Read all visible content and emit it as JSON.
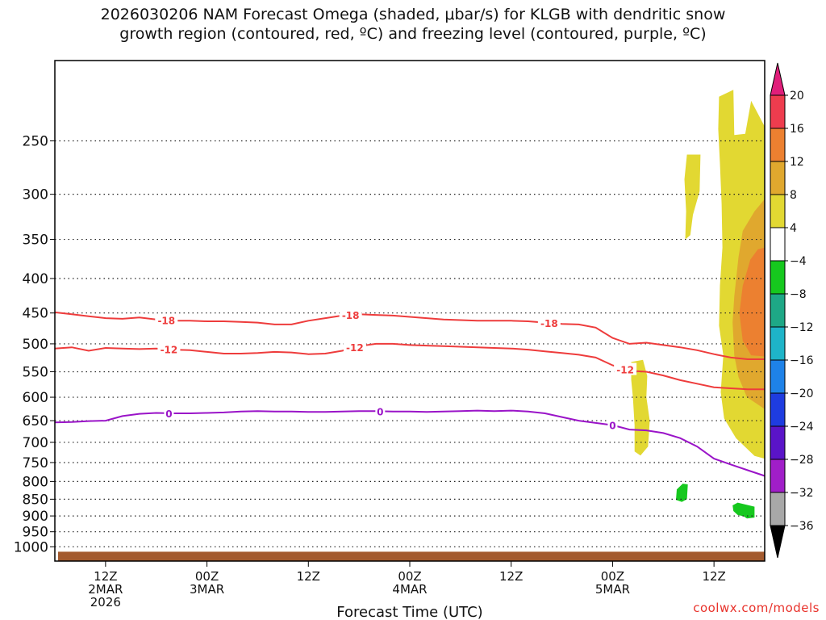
{
  "title": "2026030206 NAM Forecast Omega (shaded, μbar/s) for KLGB with dendritic snow\ngrowth region (contoured, red, ºC) and freezing level (contoured, purple, ºC)",
  "credit": "coolwx.com/models",
  "chart_data": {
    "type": "time-height contour",
    "title": "2026030206 NAM Forecast Omega (shaded, μbar/s) for KLGB with dendritic snow growth region (contoured, red, ºC) and freezing level (contoured, purple, ºC)",
    "xlabel": "Forecast Time (UTC)",
    "ylabel": "",
    "x_range_hours": [
      6,
      90
    ],
    "y_range_mb": [
      1050,
      190
    ],
    "y_ticks": [
      250,
      300,
      350,
      400,
      450,
      500,
      550,
      600,
      650,
      700,
      750,
      800,
      850,
      900,
      950,
      1000
    ],
    "x_ticks": [
      {
        "hour": 12,
        "lines": [
          "12Z",
          "2MAR",
          "2026"
        ]
      },
      {
        "hour": 24,
        "lines": [
          "00Z",
          "3MAR"
        ]
      },
      {
        "hour": 36,
        "lines": [
          "12Z"
        ]
      },
      {
        "hour": 48,
        "lines": [
          "00Z",
          "4MAR"
        ]
      },
      {
        "hour": 60,
        "lines": [
          "12Z"
        ]
      },
      {
        "hour": 72,
        "lines": [
          "00Z",
          "5MAR"
        ]
      },
      {
        "hour": 84,
        "lines": [
          "12Z"
        ]
      }
    ],
    "grid": true,
    "colorbar": {
      "label_values": [
        20,
        16,
        12,
        8,
        4,
        -4,
        -8,
        -12,
        -16,
        -20,
        -24,
        -28,
        -32,
        -36
      ],
      "levels": [
        {
          "range": [
            16,
            20
          ],
          "color": "#ee3c4e"
        },
        {
          "range": [
            12,
            16
          ],
          "color": "#ec8030"
        },
        {
          "range": [
            8,
            12
          ],
          "color": "#e0a82e"
        },
        {
          "range": [
            4,
            8
          ],
          "color": "#e2d832"
        },
        {
          "range": [
            -4,
            4
          ],
          "color": "#ffffff"
        },
        {
          "range": [
            -8,
            -4
          ],
          "color": "#16c81e"
        },
        {
          "range": [
            -12,
            -8
          ],
          "color": "#1ea886"
        },
        {
          "range": [
            -16,
            -12
          ],
          "color": "#1eb4c8"
        },
        {
          "range": [
            -20,
            -16
          ],
          "color": "#1e82e8"
        },
        {
          "range": [
            -24,
            -20
          ],
          "color": "#1e3ce0"
        },
        {
          "range": [
            -28,
            -24
          ],
          "color": "#5a14c8"
        },
        {
          "range": [
            -32,
            -28
          ],
          "color": "#a01ec8"
        },
        {
          "range": [
            -36,
            -32
          ],
          "color": "#a8a8a8"
        }
      ],
      "top_extension_color": "#e01e7a",
      "bottom_extension_color": "#000000"
    },
    "series": [
      {
        "name": "-18 ºC (dendritic growth top)",
        "color": "#ee3c3c",
        "label": "-18",
        "label_hours": [
          19.2,
          41,
          64.5
        ],
        "hours": [
          6,
          8,
          10,
          12,
          14,
          16,
          18,
          20,
          22,
          24,
          26,
          28,
          30,
          32,
          34,
          36,
          38,
          40,
          42,
          44,
          46,
          48,
          50,
          52,
          54,
          56,
          58,
          60,
          62,
          64,
          66,
          68,
          70,
          72,
          74,
          76,
          78,
          80,
          82,
          84,
          86,
          88,
          90
        ],
        "values_mb": [
          449,
          452,
          455,
          458,
          459,
          457,
          460,
          462,
          462,
          463,
          463,
          464,
          465,
          468,
          468,
          462,
          458,
          454,
          452,
          453,
          454,
          456,
          458,
          460,
          461,
          462,
          462,
          462,
          463,
          465,
          467,
          468,
          473,
          490,
          500,
          498,
          502,
          506,
          511,
          518,
          524,
          527,
          527
        ]
      },
      {
        "name": "-12 ºC (dendritic growth bottom)",
        "color": "#ee3c3c",
        "label": "-12",
        "label_hours": [
          19.5,
          41.5,
          73.5
        ],
        "hours": [
          6,
          8,
          10,
          12,
          14,
          16,
          18,
          20,
          22,
          24,
          26,
          28,
          30,
          32,
          34,
          36,
          38,
          40,
          42,
          44,
          46,
          48,
          50,
          52,
          54,
          56,
          58,
          60,
          62,
          64,
          66,
          68,
          70,
          72,
          74,
          76,
          78,
          80,
          82,
          84,
          86,
          88,
          90
        ],
        "values_mb": [
          508,
          506,
          512,
          507,
          508,
          509,
          508,
          510,
          511,
          514,
          517,
          517,
          516,
          514,
          515,
          518,
          517,
          512,
          504,
          500,
          500,
          502,
          503,
          504,
          505,
          506,
          507,
          508,
          510,
          513,
          516,
          519,
          524,
          538,
          548,
          550,
          557,
          566,
          573,
          580,
          582,
          584,
          584
        ]
      },
      {
        "name": "0 ºC (freezing level)",
        "color": "#9a14c8",
        "label": "0",
        "label_hours": [
          19.5,
          44.5,
          72
        ],
        "hours": [
          6,
          8,
          10,
          12,
          14,
          16,
          18,
          20,
          22,
          24,
          26,
          28,
          30,
          32,
          34,
          36,
          38,
          40,
          42,
          44,
          46,
          48,
          50,
          52,
          54,
          56,
          58,
          60,
          62,
          64,
          66,
          68,
          70,
          72,
          74,
          76,
          78,
          80,
          82,
          84,
          86,
          88,
          90
        ],
        "values_mb": [
          654,
          653,
          651,
          650,
          640,
          635,
          633,
          634,
          634,
          633,
          632,
          630,
          629,
          630,
          630,
          631,
          631,
          630,
          629,
          629,
          630,
          630,
          631,
          630,
          629,
          628,
          629,
          628,
          630,
          634,
          642,
          650,
          655,
          660,
          670,
          672,
          678,
          690,
          710,
          740,
          755,
          770,
          785
        ]
      }
    ],
    "shaded_regions": [
      {
        "name": "omega-upper-plume-outer",
        "level": "4 to 8",
        "polygon_hour_mb": [
          [
            84.6,
            215
          ],
          [
            86.3,
            210
          ],
          [
            86.4,
            245
          ],
          [
            87.7,
            244
          ],
          [
            88.4,
            218
          ],
          [
            90,
            238
          ],
          [
            90,
            740
          ],
          [
            88.8,
            733
          ],
          [
            86.6,
            690
          ],
          [
            85.2,
            645
          ],
          [
            84.8,
            590
          ],
          [
            85.1,
            520
          ],
          [
            84.6,
            470
          ],
          [
            84.7,
            410
          ],
          [
            85,
            360
          ],
          [
            84.9,
            310
          ],
          [
            84.7,
            270
          ],
          [
            84.5,
            240
          ]
        ]
      },
      {
        "name": "omega-upper-plume-mid",
        "level": "8 to 12",
        "polygon_hour_mb": [
          [
            90,
            305
          ],
          [
            88.8,
            318
          ],
          [
            87.4,
            340
          ],
          [
            86.9,
            372
          ],
          [
            86.4,
            425
          ],
          [
            86.2,
            465
          ],
          [
            86.4,
            520
          ],
          [
            86.9,
            560
          ],
          [
            87.9,
            600
          ],
          [
            90,
            625
          ]
        ]
      },
      {
        "name": "omega-upper-plume-inner",
        "level": "12 to 16",
        "polygon_hour_mb": [
          [
            90,
            360
          ],
          [
            89.2,
            362
          ],
          [
            88.3,
            375
          ],
          [
            87.4,
            410
          ],
          [
            87,
            450
          ],
          [
            87.4,
            495
          ],
          [
            88.4,
            520
          ],
          [
            90,
            522
          ]
        ]
      },
      {
        "name": "omega-narrow-upper-band",
        "level": "4 to 8",
        "polygon_hour_mb": [
          [
            80.8,
            262
          ],
          [
            82.4,
            262
          ],
          [
            82.3,
            297
          ],
          [
            81.5,
            322
          ],
          [
            81.2,
            345
          ],
          [
            80.6,
            350
          ],
          [
            80.7,
            318
          ],
          [
            80.5,
            285
          ]
        ]
      },
      {
        "name": "omega-lower-band",
        "level": "4 to 8",
        "polygon_hour_mb": [
          [
            74.2,
            532
          ],
          [
            75.6,
            528
          ],
          [
            76.1,
            558
          ],
          [
            76,
            600
          ],
          [
            76.4,
            650
          ],
          [
            76.2,
            710
          ],
          [
            75.3,
            732
          ],
          [
            74.6,
            722
          ],
          [
            74.6,
            660
          ],
          [
            74.4,
            600
          ],
          [
            74.2,
            565
          ]
        ]
      },
      {
        "name": "omega-negative-blob-a",
        "level": "-4 to -8",
        "polygon_hour_mb": [
          [
            79.6,
            822
          ],
          [
            80.3,
            806
          ],
          [
            80.9,
            808
          ],
          [
            80.8,
            850
          ],
          [
            80.2,
            858
          ],
          [
            79.5,
            852
          ]
        ]
      },
      {
        "name": "omega-negative-blob-b",
        "level": "-4 to -8",
        "polygon_hour_mb": [
          [
            86.2,
            868
          ],
          [
            86.8,
            860
          ],
          [
            87.8,
            866
          ],
          [
            88.8,
            872
          ],
          [
            88.8,
            905
          ],
          [
            87.9,
            908
          ],
          [
            87.5,
            901
          ],
          [
            86.8,
            897
          ],
          [
            86.3,
            885
          ]
        ]
      }
    ],
    "terrain_strip": {
      "color": "#a35a2e",
      "surface_mb": 1017
    }
  }
}
